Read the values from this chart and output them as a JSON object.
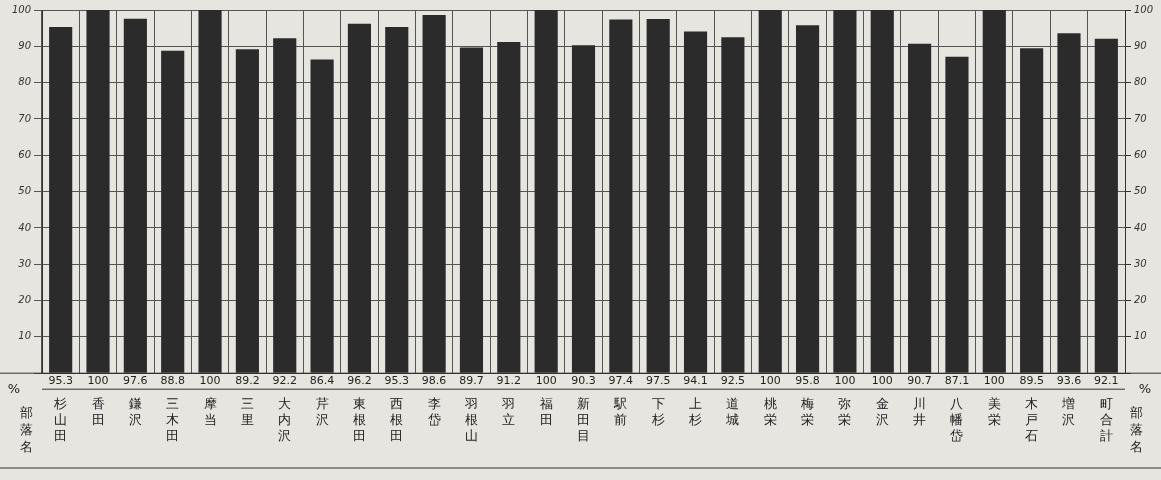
{
  "chart_data": {
    "type": "bar",
    "categories": [
      "杉山田",
      "香田",
      "鎌沢",
      "三木田",
      "摩当",
      "三里",
      "大内沢",
      "芹沢",
      "東根田",
      "西根田",
      "李岱",
      "羽根山",
      "羽立",
      "福田",
      "新田目",
      "駅前",
      "下杉",
      "上杉",
      "道城",
      "桃栄",
      "梅栄",
      "弥栄",
      "金沢",
      "川井",
      "八幡岱",
      "美栄",
      "木戸石",
      "増沢",
      "町合計"
    ],
    "values": [
      95.3,
      100,
      97.6,
      88.8,
      100,
      89.2,
      92.2,
      86.4,
      96.2,
      95.3,
      98.6,
      89.7,
      91.2,
      100,
      90.3,
      97.4,
      97.5,
      94.1,
      92.5,
      100,
      95.8,
      100,
      100,
      90.7,
      87.1,
      100,
      89.5,
      93.6,
      92.1
    ],
    "color": "#2b2b2b",
    "value_labels": [
      "95.3",
      "100",
      "97.6",
      "88.8",
      "100",
      "89.2",
      "92.2",
      "86.4",
      "96.2",
      "95.3",
      "98.6",
      "89.7",
      "91.2",
      "100",
      "90.3",
      "97.4",
      "97.5",
      "94.1",
      "92.5",
      "100",
      "95.8",
      "100",
      "100",
      "90.7",
      "87.1",
      "100",
      "89.5",
      "93.6",
      "92.1"
    ],
    "ylabel": "%",
    "y2label": "%",
    "xlabel": "部落名",
    "annotations": [
      "部落名"
    ],
    "ylim": [
      0,
      100
    ],
    "yticks": [
      {
        "value": 0,
        "label": null
      },
      10,
      20,
      30,
      40,
      50,
      60,
      70,
      80,
      90,
      100
    ],
    "y2lim": [
      0,
      100
    ],
    "y2ticks": [
      {
        "value": 0,
        "label": null
      },
      10,
      20,
      30,
      40,
      50,
      60,
      70,
      80,
      90,
      100
    ],
    "grid": true,
    "legend": false
  }
}
